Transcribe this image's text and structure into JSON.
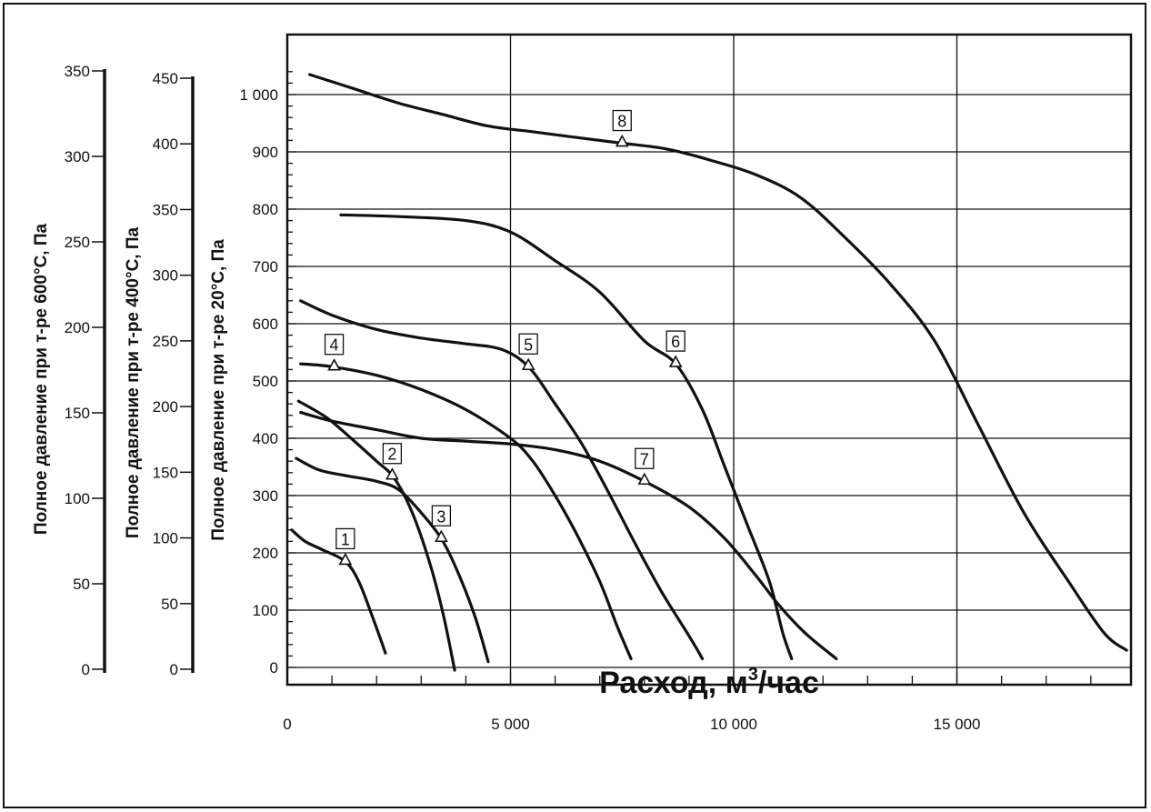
{
  "chart_data": {
    "type": "line",
    "xlabel_main": "Расход, м",
    "xlabel_sup": "3",
    "xlabel_tail": "/час",
    "x_ticks": [
      0,
      5000,
      10000,
      15000
    ],
    "x_tick_labels": [
      "0",
      "5 000",
      "10 000",
      "15 000"
    ],
    "xlim": [
      0,
      18900
    ],
    "grid": true,
    "axes": [
      {
        "id": "p20",
        "label": "Полное давление при т-ре 20°С, Па",
        "ylim": [
          0,
          1000
        ],
        "ticks": [
          0,
          100,
          200,
          300,
          400,
          500,
          600,
          700,
          800,
          900,
          1000
        ],
        "tick_labels": [
          "0",
          "100",
          "200",
          "300",
          "400",
          "500",
          "600",
          "700",
          "800",
          "900",
          "1 000"
        ]
      },
      {
        "id": "p400",
        "label": "Полное давление при т-ре 400°С, Па",
        "ylim": [
          0,
          450
        ],
        "ticks": [
          0,
          50,
          100,
          150,
          200,
          250,
          300,
          350,
          400,
          450
        ],
        "tick_labels": [
          "0",
          "50",
          "100",
          "150",
          "200",
          "250",
          "300",
          "350",
          "400",
          "450"
        ]
      },
      {
        "id": "p600",
        "label": "Полное давление при т-ре 600°С, Па",
        "ylim": [
          0,
          350
        ],
        "ticks": [
          0,
          50,
          100,
          150,
          200,
          250,
          300,
          350
        ],
        "tick_labels": [
          "0",
          "50",
          "100",
          "150",
          "200",
          "250",
          "300",
          "350"
        ]
      }
    ],
    "series": [
      {
        "label": "1",
        "marker_at": 1300,
        "points": [
          [
            100,
            240
          ],
          [
            400,
            220
          ],
          [
            800,
            205
          ],
          [
            1300,
            185
          ],
          [
            1600,
            150
          ],
          [
            1900,
            90
          ],
          [
            2200,
            25
          ]
        ]
      },
      {
        "label": "2",
        "marker_at": 2350,
        "points": [
          [
            250,
            465
          ],
          [
            900,
            435
          ],
          [
            1500,
            395
          ],
          [
            2000,
            360
          ],
          [
            2400,
            330
          ],
          [
            2800,
            270
          ],
          [
            3200,
            180
          ],
          [
            3500,
            90
          ],
          [
            3750,
            -5
          ]
        ]
      },
      {
        "label": "3",
        "marker_at": 3450,
        "points": [
          [
            200,
            365
          ],
          [
            700,
            345
          ],
          [
            1300,
            335
          ],
          [
            2000,
            325
          ],
          [
            2500,
            310
          ],
          [
            3000,
            270
          ],
          [
            3450,
            225
          ],
          [
            3800,
            170
          ],
          [
            4200,
            90
          ],
          [
            4500,
            10
          ]
        ]
      },
      {
        "label": "4",
        "marker_at": 1050,
        "points": [
          [
            300,
            530
          ],
          [
            1000,
            525
          ],
          [
            2000,
            510
          ],
          [
            3000,
            485
          ],
          [
            4000,
            450
          ],
          [
            5000,
            400
          ],
          [
            5500,
            360
          ],
          [
            6000,
            300
          ],
          [
            6500,
            230
          ],
          [
            7000,
            150
          ],
          [
            7400,
            70
          ],
          [
            7700,
            15
          ]
        ]
      },
      {
        "label": "5",
        "marker_at": 5400,
        "points": [
          [
            300,
            640
          ],
          [
            1000,
            615
          ],
          [
            2000,
            590
          ],
          [
            3000,
            575
          ],
          [
            4000,
            565
          ],
          [
            4800,
            555
          ],
          [
            5400,
            525
          ],
          [
            6000,
            460
          ],
          [
            6600,
            390
          ],
          [
            7200,
            305
          ],
          [
            7800,
            215
          ],
          [
            8400,
            130
          ],
          [
            9000,
            55
          ],
          [
            9300,
            15
          ]
        ]
      },
      {
        "label": "6",
        "marker_at": 8700,
        "points": [
          [
            1200,
            790
          ],
          [
            2500,
            787
          ],
          [
            4000,
            780
          ],
          [
            5000,
            760
          ],
          [
            6000,
            710
          ],
          [
            7000,
            655
          ],
          [
            8000,
            570
          ],
          [
            8700,
            530
          ],
          [
            9300,
            450
          ],
          [
            9800,
            350
          ],
          [
            10300,
            250
          ],
          [
            10800,
            150
          ],
          [
            11100,
            60
          ],
          [
            11300,
            15
          ]
        ]
      },
      {
        "label": "7",
        "marker_at": 8000,
        "points": [
          [
            300,
            445
          ],
          [
            1000,
            430
          ],
          [
            2000,
            415
          ],
          [
            3000,
            400
          ],
          [
            4000,
            395
          ],
          [
            5000,
            390
          ],
          [
            6000,
            380
          ],
          [
            7000,
            360
          ],
          [
            8000,
            325
          ],
          [
            9000,
            280
          ],
          [
            9800,
            225
          ],
          [
            10500,
            160
          ],
          [
            11000,
            110
          ],
          [
            11600,
            60
          ],
          [
            12300,
            15
          ]
        ]
      },
      {
        "label": "8",
        "marker_at": 7500,
        "points": [
          [
            500,
            1035
          ],
          [
            1500,
            1010
          ],
          [
            2500,
            985
          ],
          [
            3500,
            965
          ],
          [
            4500,
            945
          ],
          [
            5500,
            935
          ],
          [
            6500,
            925
          ],
          [
            7500,
            915
          ],
          [
            8500,
            905
          ],
          [
            9500,
            885
          ],
          [
            10500,
            860
          ],
          [
            11500,
            820
          ],
          [
            12500,
            750
          ],
          [
            13500,
            670
          ],
          [
            14500,
            570
          ],
          [
            15500,
            420
          ],
          [
            16500,
            270
          ],
          [
            17500,
            150
          ],
          [
            18300,
            60
          ],
          [
            18800,
            30
          ]
        ]
      }
    ]
  }
}
